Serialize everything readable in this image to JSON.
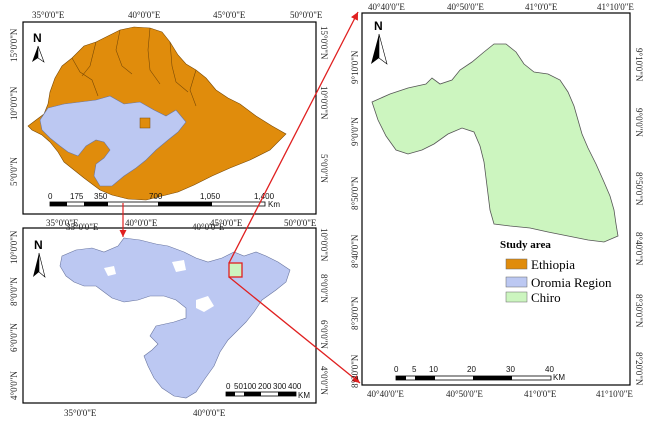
{
  "colors": {
    "ethiopia": "#e08c0c",
    "oromia": "#bcc8f2",
    "chiro": "#ccf5bf",
    "arrow": "#e02020",
    "frame": "#000000"
  },
  "panel_a": {
    "north_label": "N",
    "top_ticks": [
      "35°0'0\"E",
      "40°0'0\"E",
      "45°0'0\"E",
      "50°0'0\"E"
    ],
    "bottom_ticks": [
      "35°0'0\"E",
      "40°0'0\"E",
      "45°0'0\"E",
      "50°0'0\"E"
    ],
    "left_ticks": [
      "15°0'0\"N",
      "10°0'0\"N",
      "5°0'0\"N"
    ],
    "right_ticks": [
      "15°0'0\"N",
      "10°0'0\"N",
      "5°0'0\"N"
    ],
    "scale_labels": [
      "0",
      "175",
      "350",
      "700",
      "1,050",
      "1,400"
    ],
    "scale_unit": "Km"
  },
  "panel_b": {
    "north_label": "N",
    "top_ticks": [
      "35°0'0\"E",
      "40°0'0\"E"
    ],
    "bottom_ticks": [
      "35°0'0\"E",
      "40°0'0\"E"
    ],
    "left_ticks": [
      "10°0'0\"N",
      "8°0'0\"N",
      "6°0'0\"N",
      "4°0'0\"N"
    ],
    "right_ticks": [
      "10°0'0\"N",
      "8°0'0\"N",
      "6°0'0\"N",
      "4°0'0\"N"
    ],
    "scale_labels": [
      "0",
      "50",
      "100",
      "200",
      "300",
      "400"
    ],
    "scale_unit": "KM"
  },
  "panel_c": {
    "north_label": "N",
    "top_ticks": [
      "40°40'0\"E",
      "40°50'0\"E",
      "41°0'0\"E",
      "41°10'0\"E"
    ],
    "bottom_ticks": [
      "40°40'0\"E",
      "40°50'0\"E",
      "41°0'0\"E",
      "41°10'0\"E"
    ],
    "left_ticks": [
      "9°10'0\"N",
      "9°0'0\"N",
      "8°50'0\"N",
      "8°40'0\"N",
      "8°30'0\"N",
      "8°20'0\"N"
    ],
    "right_ticks": [
      "9°10'0\"N",
      "9°0'0\"N",
      "8°50'0\"N",
      "8°40'0\"N",
      "8°30'0\"N",
      "8°20'0\"N"
    ],
    "scale_labels": [
      "0",
      "5",
      "10",
      "20",
      "30",
      "40"
    ],
    "scale_unit": "KM"
  },
  "legend": {
    "title": "Study area",
    "items": [
      {
        "label": "Ethiopia",
        "color": "#e08c0c"
      },
      {
        "label": "Oromia Region",
        "color": "#bcc8f2"
      },
      {
        "label": "Chiro",
        "color": "#ccf5bf"
      }
    ]
  }
}
